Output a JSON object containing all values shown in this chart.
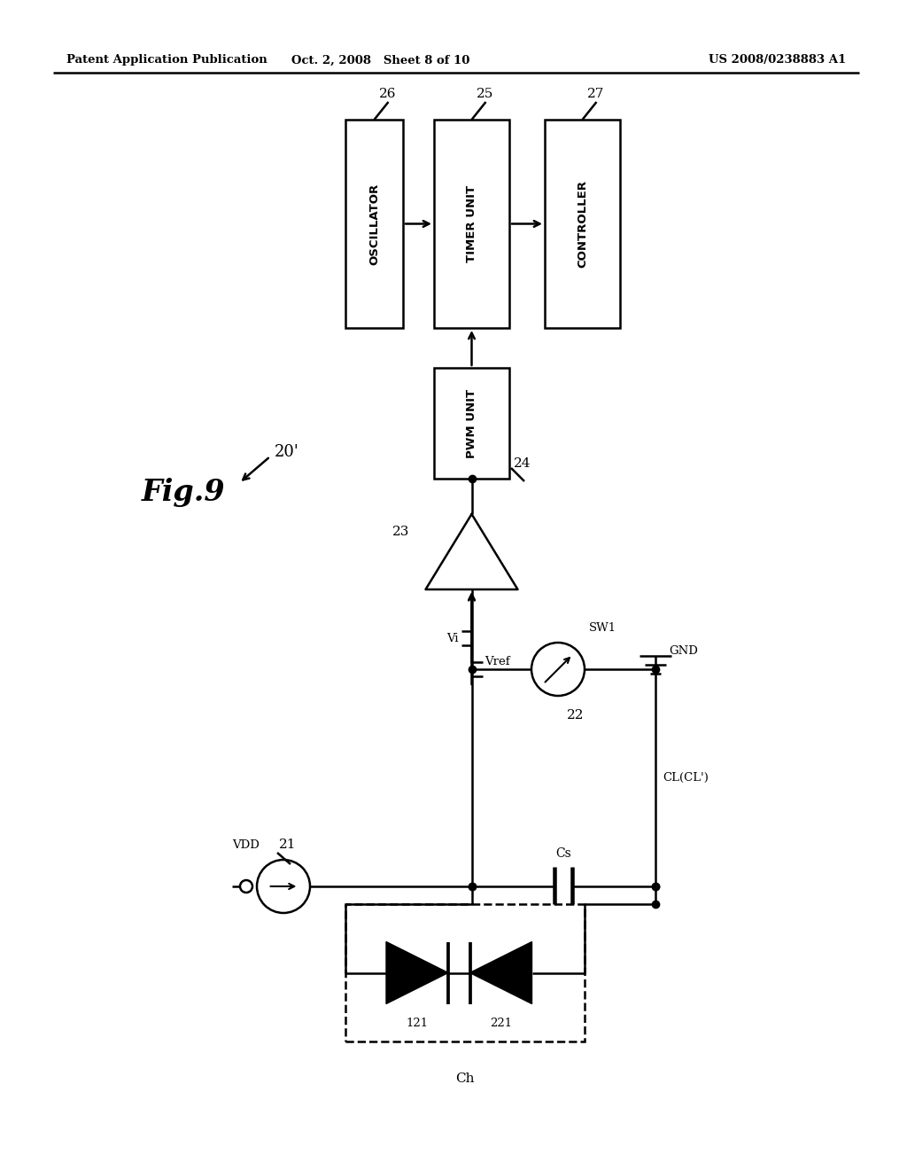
{
  "bg": "#ffffff",
  "header_left": "Patent Application Publication",
  "header_center": "Oct. 2, 2008   Sheet 8 of 10",
  "header_right": "US 2008/0238883 A1",
  "lw": 1.8
}
